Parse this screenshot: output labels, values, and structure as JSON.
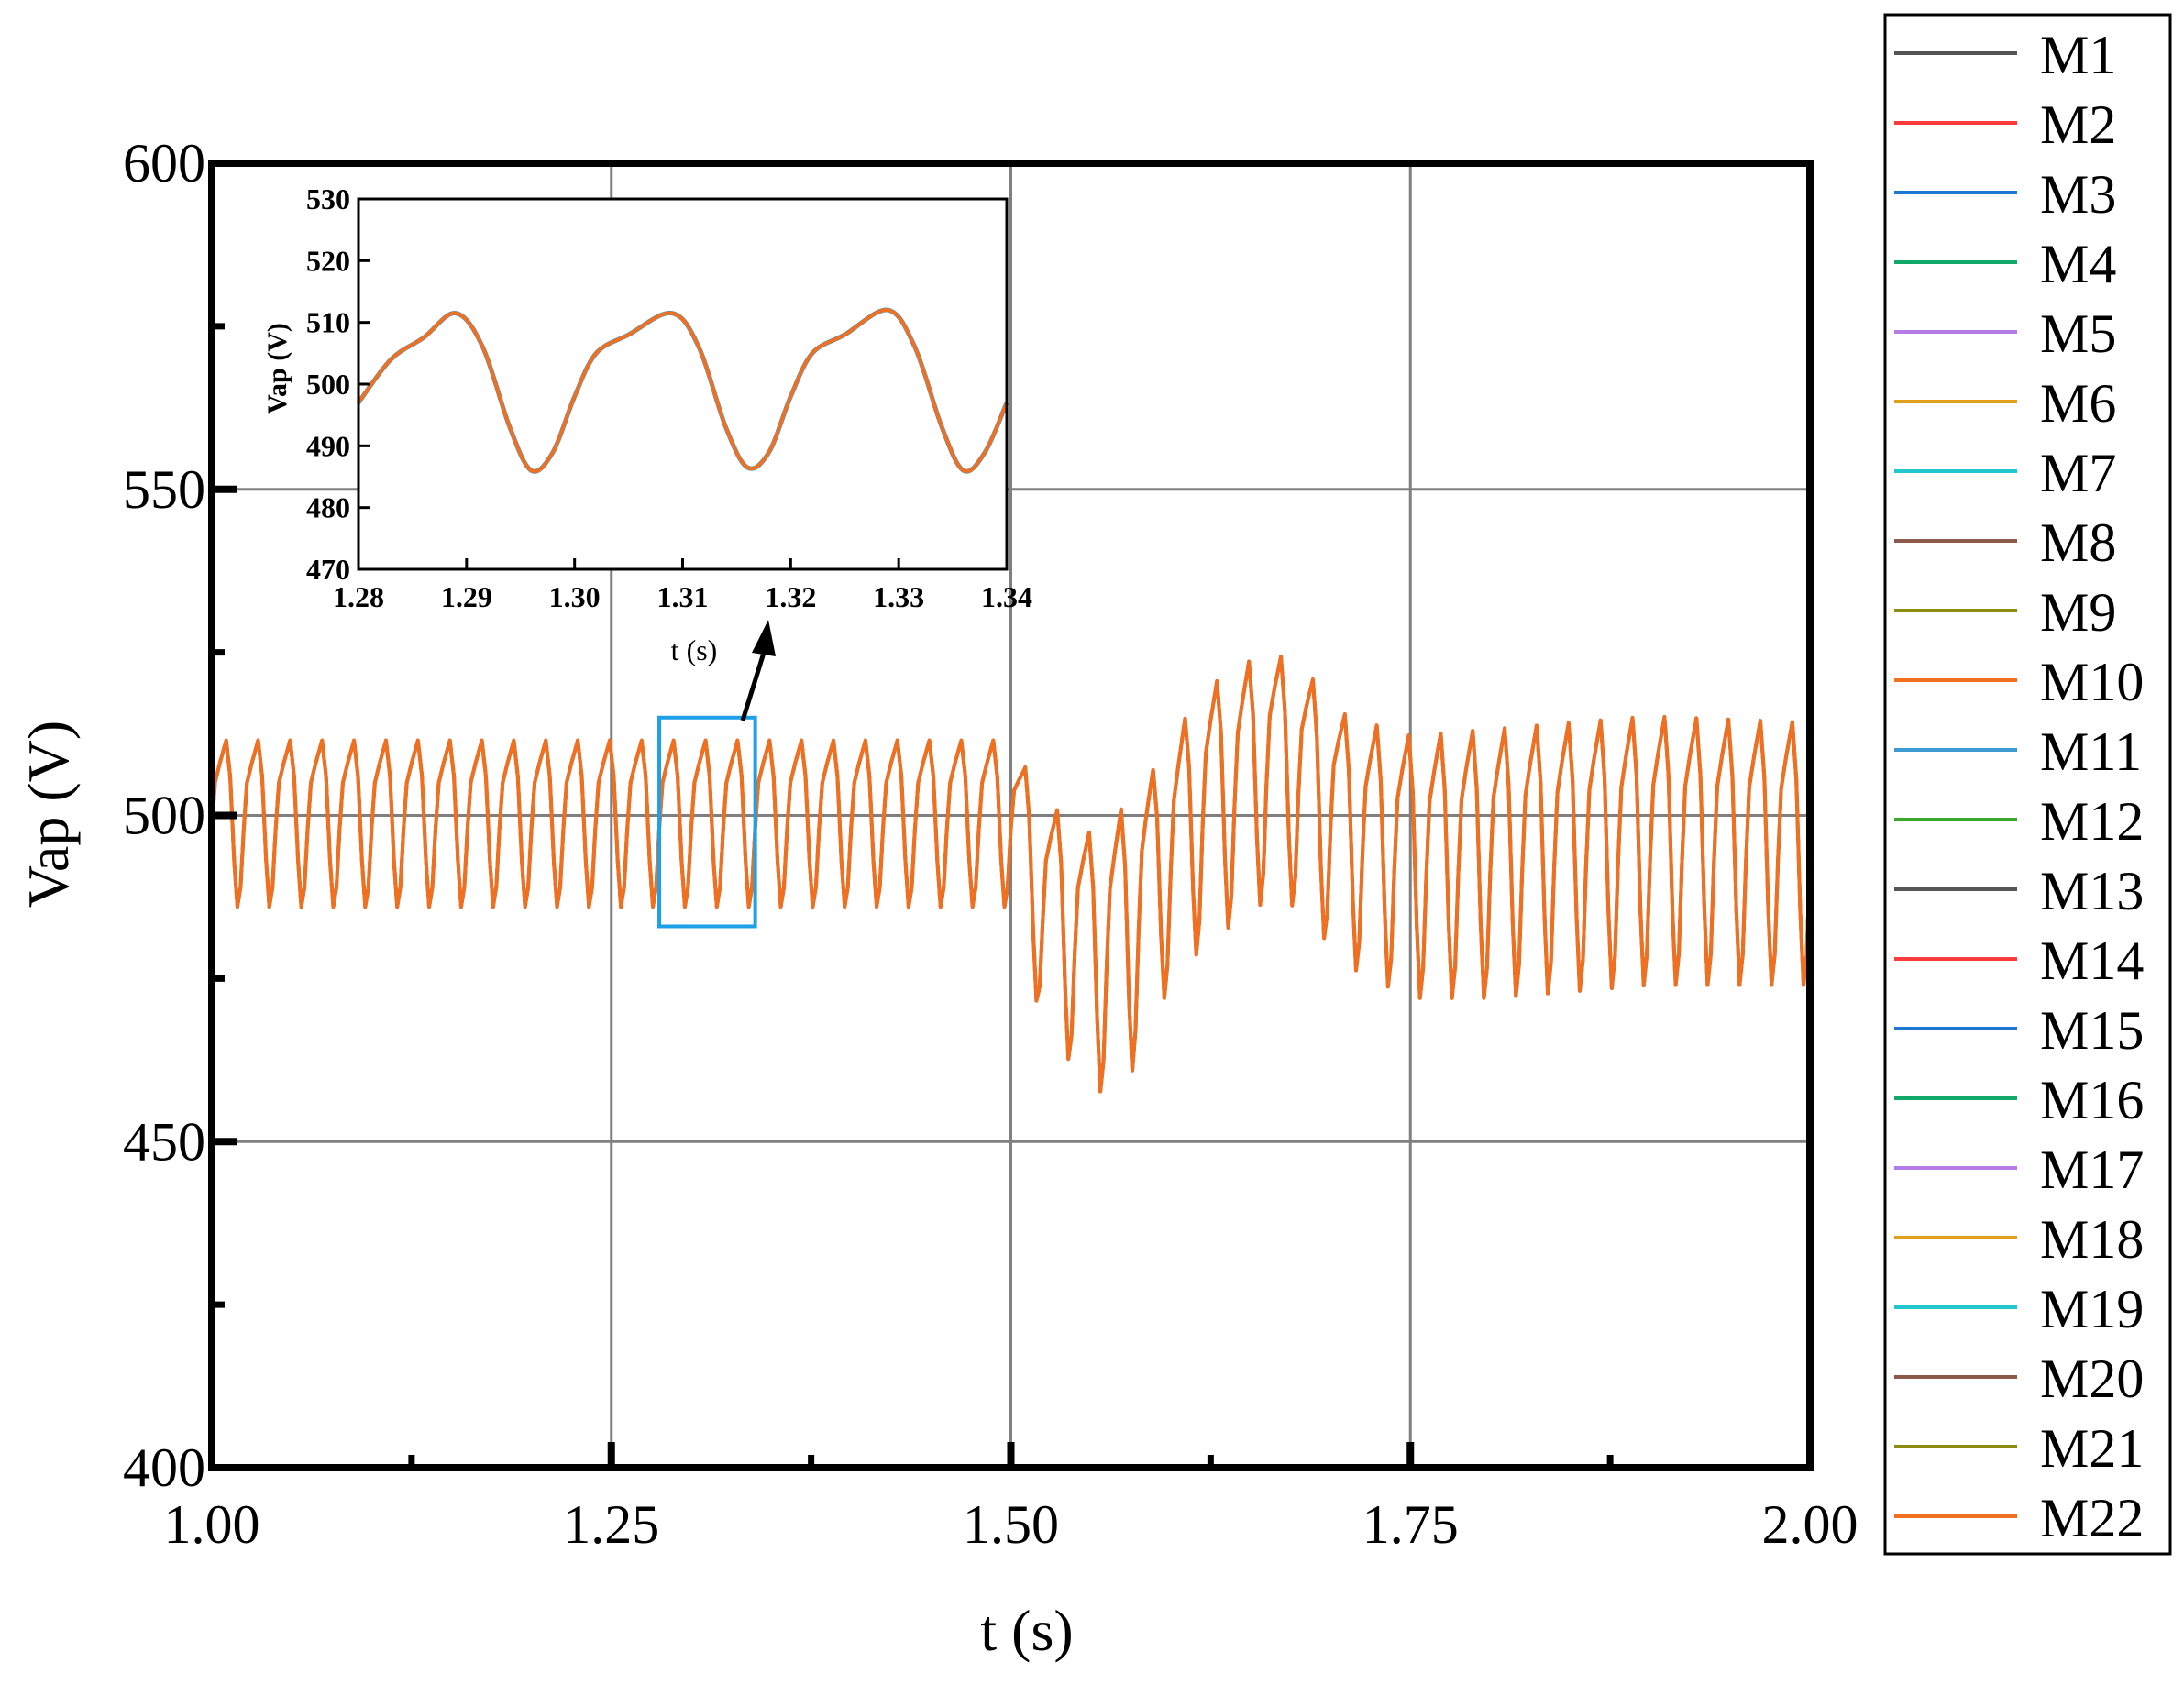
{
  "chart_data": {
    "type": "line",
    "xlabel": "t (s)",
    "ylabel": "Vap (V)",
    "xlim": [
      1.0,
      2.0
    ],
    "ylim": [
      400,
      600
    ],
    "xticks": [
      "1.00",
      "1.25",
      "1.50",
      "1.75",
      "2.00"
    ],
    "yticks": [
      "400",
      "450",
      "500",
      "550",
      "600"
    ],
    "grid": true,
    "legend_position": "right-outside",
    "series_colors": [
      "#555555",
      "#ff3b3b",
      "#1f77d4",
      "#12a86a",
      "#b57be6",
      "#e0a01c",
      "#22c6cf",
      "#8b5a4a",
      "#8c8c12",
      "#f07020",
      "#3b9bd0",
      "#3aa82a",
      "#555555",
      "#ff3b3b",
      "#1f77d4",
      "#12a86a",
      "#b57be6",
      "#e0a01c",
      "#22c6cf",
      "#8b5a4a",
      "#8c8c12",
      "#f07020"
    ],
    "legend": [
      "M1",
      "M2",
      "M3",
      "M4",
      "M5",
      "M6",
      "M7",
      "M8",
      "M9",
      "M10",
      "M11",
      "M12",
      "M13",
      "M14",
      "M15",
      "M16",
      "M17",
      "M18",
      "M19",
      "M20",
      "M21",
      "M22"
    ],
    "series_overlap_note_color": "#f07020",
    "waveform": {
      "frequency_hz": 50,
      "envelope": [
        {
          "t": 1.0,
          "max": 512,
          "min": 486
        },
        {
          "t": 1.5,
          "max": 512,
          "min": 486
        },
        {
          "t": 1.52,
          "max": 503,
          "min": 468
        },
        {
          "t": 1.55,
          "max": 498,
          "min": 458
        },
        {
          "t": 1.57,
          "max": 502,
          "min": 457
        },
        {
          "t": 1.59,
          "max": 508,
          "min": 470
        },
        {
          "t": 1.62,
          "max": 520,
          "min": 480
        },
        {
          "t": 1.66,
          "max": 526,
          "min": 487
        },
        {
          "t": 1.68,
          "max": 524,
          "min": 486
        },
        {
          "t": 1.71,
          "max": 516,
          "min": 477
        },
        {
          "t": 1.75,
          "max": 513,
          "min": 472
        },
        {
          "t": 1.8,
          "max": 514,
          "min": 472
        },
        {
          "t": 1.9,
          "max": 516,
          "min": 474
        },
        {
          "t": 2.0,
          "max": 515,
          "min": 474
        }
      ]
    },
    "zoom_box": {
      "x": [
        1.28,
        1.34
      ],
      "y": [
        483,
        515
      ]
    },
    "inset": {
      "xlabel": "t (s)",
      "ylabel": "Vap (V)",
      "xlim": [
        1.28,
        1.34
      ],
      "ylim": [
        470,
        530
      ],
      "xticks": [
        "1.28",
        "1.29",
        "1.30",
        "1.31",
        "1.32",
        "1.33",
        "1.34"
      ],
      "yticks": [
        "470",
        "480",
        "490",
        "500",
        "510",
        "520",
        "530"
      ],
      "points": [
        [
          1.28,
          497
        ],
        [
          1.283,
          504
        ],
        [
          1.286,
          507.5
        ],
        [
          1.289,
          511.5
        ],
        [
          1.2915,
          506
        ],
        [
          1.294,
          493
        ],
        [
          1.296,
          486
        ],
        [
          1.298,
          489
        ],
        [
          1.3,
          498
        ],
        [
          1.302,
          505
        ],
        [
          1.305,
          508
        ],
        [
          1.309,
          511.5
        ],
        [
          1.3115,
          506
        ],
        [
          1.314,
          493
        ],
        [
          1.316,
          486.5
        ],
        [
          1.318,
          489
        ],
        [
          1.32,
          498
        ],
        [
          1.322,
          505
        ],
        [
          1.325,
          508
        ],
        [
          1.329,
          512
        ],
        [
          1.3315,
          506
        ],
        [
          1.334,
          493
        ],
        [
          1.336,
          486
        ],
        [
          1.338,
          489
        ],
        [
          1.34,
          497
        ]
      ]
    }
  }
}
